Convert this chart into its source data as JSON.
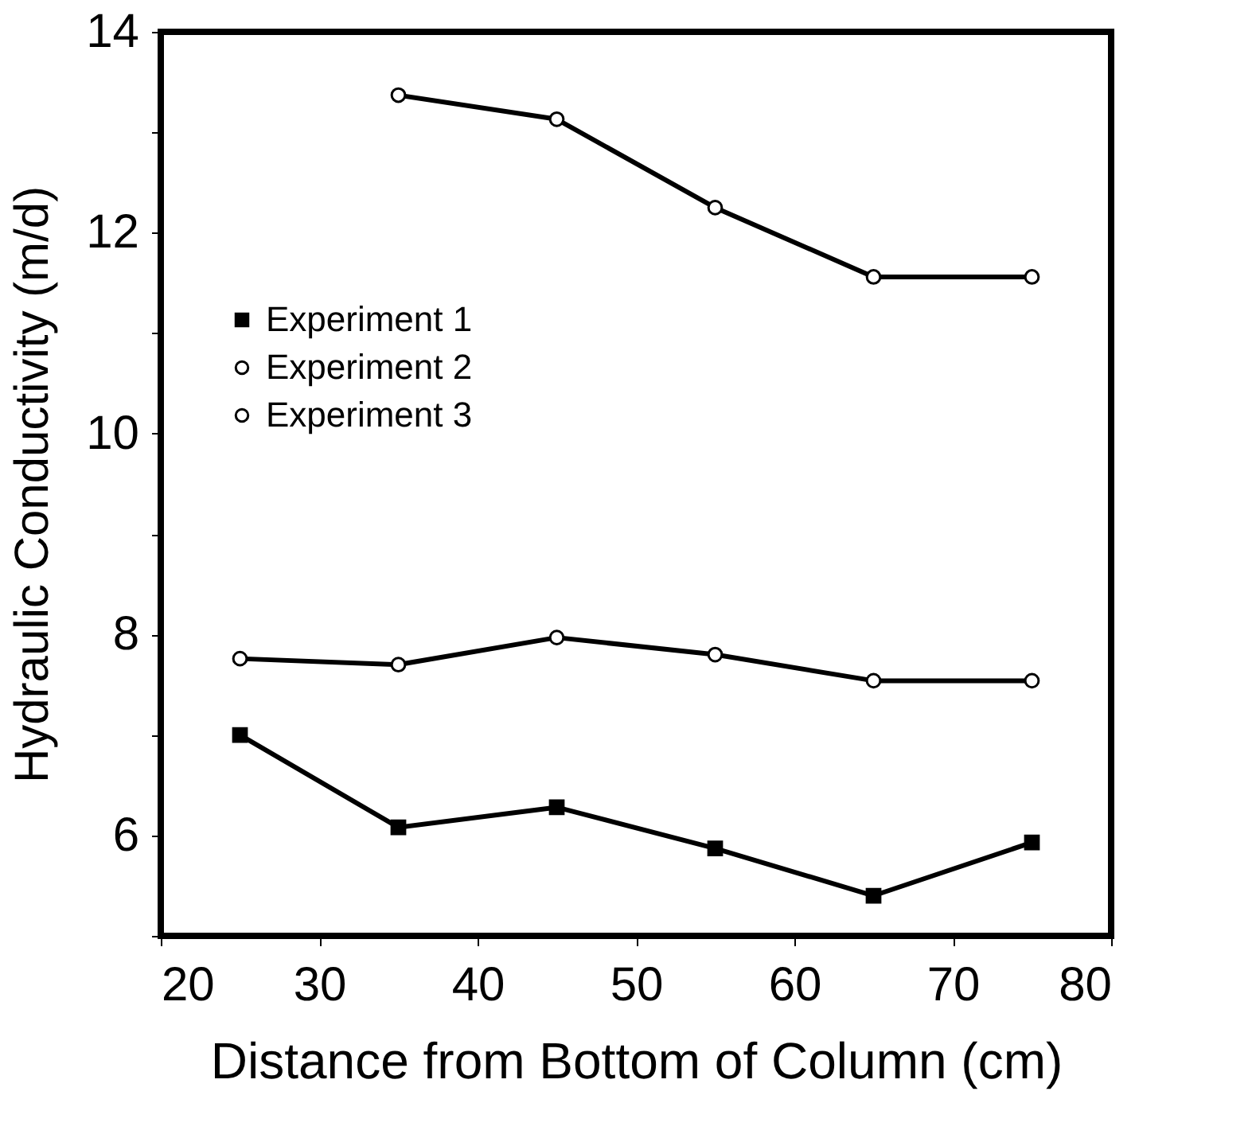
{
  "chart_data": {
    "type": "line",
    "xlabel": "Distance from Bottom of Column (cm)",
    "ylabel": "Hydraulic Conductivity (m/d)",
    "x": [
      25,
      35,
      45,
      55,
      65,
      75
    ],
    "series": [
      {
        "name": "Experiment 1",
        "color": "#000000",
        "marker": "square",
        "values": [
          7.0,
          6.08,
          6.28,
          5.87,
          5.4,
          5.93
        ]
      },
      {
        "name": "Experiment 2",
        "color": "#000000",
        "marker": "circle",
        "values": [
          7.76,
          7.7,
          7.97,
          7.8,
          7.54,
          7.54
        ]
      },
      {
        "name": "Experiment 3",
        "color": "#000000",
        "marker": "circle",
        "values": [
          null,
          13.37,
          13.13,
          12.25,
          11.56,
          11.56
        ]
      }
    ],
    "xlim": [
      20,
      80
    ],
    "xticks": [
      20,
      30,
      40,
      50,
      60,
      70,
      80
    ],
    "ylim": [
      5,
      14
    ],
    "yticks": [
      {
        "value": 5,
        "label": null
      },
      6,
      {
        "value": 7,
        "label": null
      },
      8,
      {
        "value": 9,
        "label": null
      },
      10,
      {
        "value": 11,
        "label": null
      },
      12,
      {
        "value": 13,
        "label": null
      },
      14
    ],
    "grid": false,
    "legend": "left",
    "line_style": "solid"
  }
}
